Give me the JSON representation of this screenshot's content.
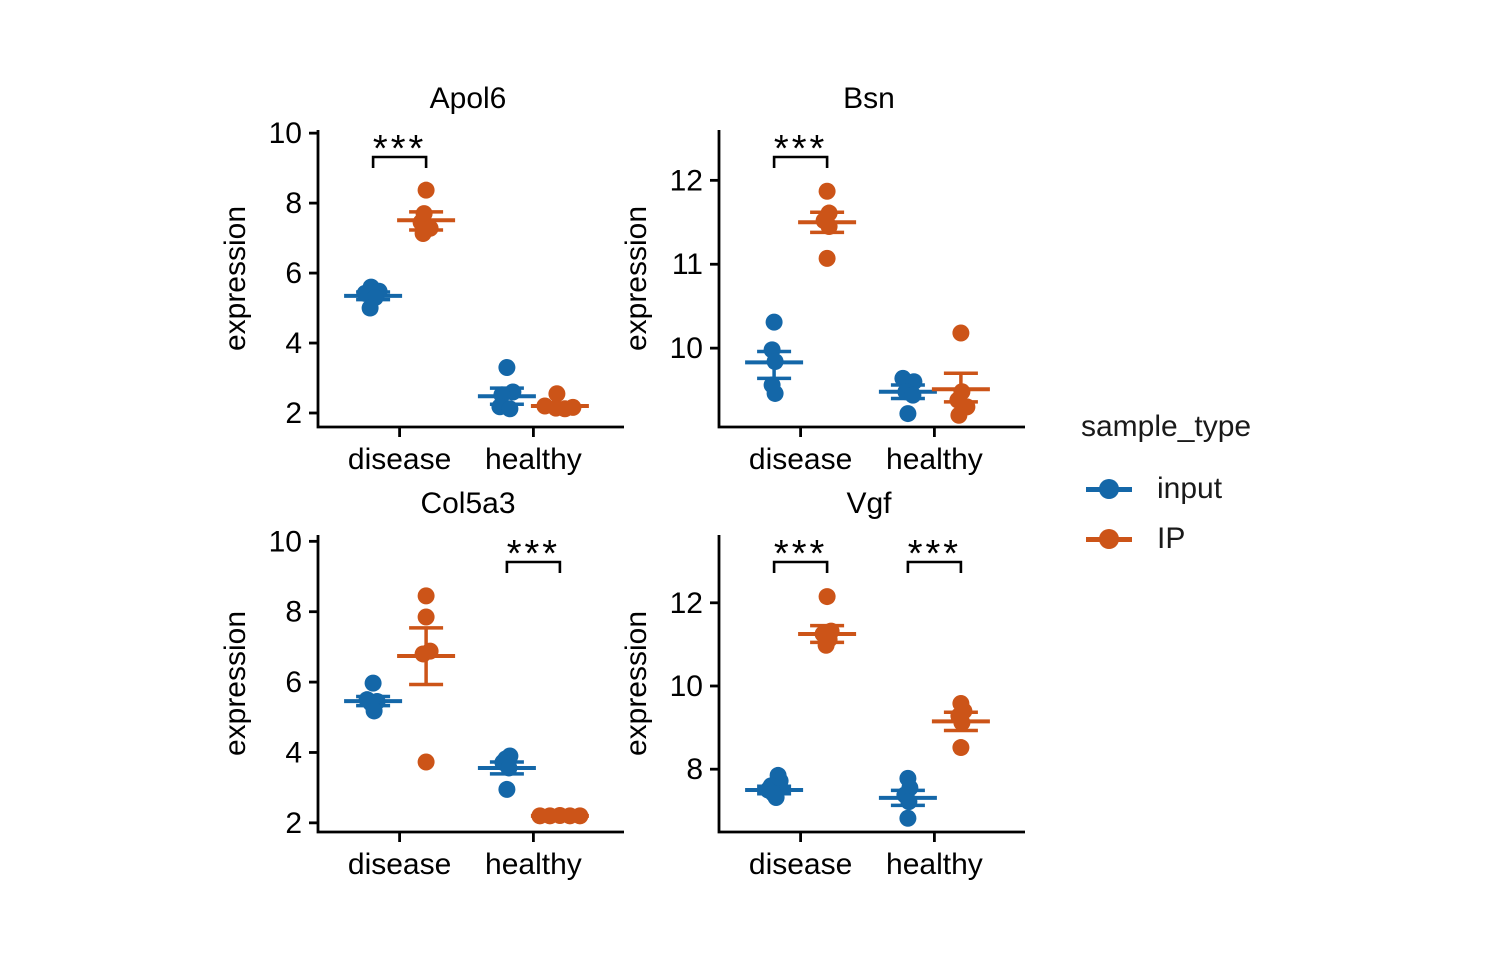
{
  "colors": {
    "input": "#1467A8",
    "IP": "#CC5418",
    "axis": "#000000",
    "text": "#000000",
    "background": "#FFFFFF"
  },
  "legend": {
    "title": "sample_type",
    "entries": [
      {
        "sample_type": "input",
        "label": "input"
      },
      {
        "sample_type": "IP",
        "label": "IP"
      }
    ]
  },
  "chart_data": {
    "type": "scatter",
    "facets": "2x2 grid of genes",
    "ylabel": "expression",
    "categories": [
      "disease",
      "healthy"
    ],
    "series": [
      "input",
      "IP"
    ],
    "legend_position": "right",
    "significance_symbol": "***",
    "panels": [
      {
        "title": "Apol6",
        "ylim": [
          1.6,
          10.09
        ],
        "yticks": [
          2,
          4,
          6,
          8,
          10
        ],
        "significance": [
          {
            "category": "disease",
            "label": "***"
          }
        ],
        "groups": [
          {
            "category": "disease",
            "sample_type": "input",
            "mean": 5.35,
            "sem": [
              5.24,
              5.46
            ],
            "points": [
              {
                "v": 5.6,
                "dx": -2
              },
              {
                "v": 5.48,
                "dx": 6
              },
              {
                "v": 5.42,
                "dx": -8
              },
              {
                "v": 5.3,
                "dx": 2
              },
              {
                "v": 5.0,
                "dx": -3
              }
            ]
          },
          {
            "category": "disease",
            "sample_type": "IP",
            "mean": 7.51,
            "sem": [
              7.23,
              7.75
            ],
            "points": [
              {
                "v": 8.37,
                "dx": 0
              },
              {
                "v": 7.7,
                "dx": -2
              },
              {
                "v": 7.45,
                "dx": -5
              },
              {
                "v": 7.28,
                "dx": 4
              },
              {
                "v": 7.13,
                "dx": -3
              }
            ]
          },
          {
            "category": "healthy",
            "sample_type": "input",
            "mean": 2.48,
            "sem": [
              2.25,
              2.71
            ],
            "points": [
              {
                "v": 3.3,
                "dx": 0
              },
              {
                "v": 2.6,
                "dx": 6
              },
              {
                "v": 2.52,
                "dx": -5
              },
              {
                "v": 2.18,
                "dx": -7
              },
              {
                "v": 2.12,
                "dx": 3
              }
            ]
          },
          {
            "category": "healthy",
            "sample_type": "IP",
            "mean": 2.2,
            "sem": [
              2.13,
              2.27
            ],
            "points": [
              {
                "v": 2.55,
                "dx": -3
              },
              {
                "v": 2.2,
                "dx": -15
              },
              {
                "v": 2.16,
                "dx": 13
              },
              {
                "v": 2.14,
                "dx": -4
              },
              {
                "v": 2.12,
                "dx": 5
              }
            ]
          }
        ]
      },
      {
        "title": "Bsn",
        "ylim": [
          9.06,
          12.6
        ],
        "yticks": [
          10,
          11,
          12
        ],
        "significance": [
          {
            "category": "disease",
            "label": "***"
          }
        ],
        "groups": [
          {
            "category": "disease",
            "sample_type": "input",
            "mean": 9.83,
            "sem": [
              9.64,
              9.96
            ],
            "points": [
              {
                "v": 10.31,
                "dx": 0
              },
              {
                "v": 9.98,
                "dx": -2
              },
              {
                "v": 9.84,
                "dx": 1
              },
              {
                "v": 9.56,
                "dx": -2
              },
              {
                "v": 9.46,
                "dx": 1
              }
            ]
          },
          {
            "category": "disease",
            "sample_type": "IP",
            "mean": 11.5,
            "sem": [
              11.38,
              11.62
            ],
            "points": [
              {
                "v": 11.87,
                "dx": 0
              },
              {
                "v": 11.61,
                "dx": 2
              },
              {
                "v": 11.52,
                "dx": -3
              },
              {
                "v": 11.45,
                "dx": 2
              },
              {
                "v": 11.07,
                "dx": 0
              }
            ]
          },
          {
            "category": "healthy",
            "sample_type": "input",
            "mean": 9.48,
            "sem": [
              9.4,
              9.56
            ],
            "points": [
              {
                "v": 9.64,
                "dx": -5
              },
              {
                "v": 9.6,
                "dx": 6
              },
              {
                "v": 9.48,
                "dx": -2
              },
              {
                "v": 9.44,
                "dx": 5
              },
              {
                "v": 9.22,
                "dx": 0
              }
            ]
          },
          {
            "category": "healthy",
            "sample_type": "IP",
            "mean": 9.51,
            "sem": [
              9.36,
              9.7
            ],
            "points": [
              {
                "v": 10.18,
                "dx": 0
              },
              {
                "v": 9.48,
                "dx": 1
              },
              {
                "v": 9.38,
                "dx": -3
              },
              {
                "v": 9.3,
                "dx": 6
              },
              {
                "v": 9.2,
                "dx": -2
              }
            ]
          }
        ]
      },
      {
        "title": "Col5a3",
        "ylim": [
          1.74,
          10.18
        ],
        "yticks": [
          2,
          4,
          6,
          8,
          10
        ],
        "significance": [
          {
            "category": "healthy",
            "label": "***"
          }
        ],
        "groups": [
          {
            "category": "disease",
            "sample_type": "input",
            "mean": 5.46,
            "sem": [
              5.33,
              5.59
            ],
            "points": [
              {
                "v": 5.97,
                "dx": 0
              },
              {
                "v": 5.5,
                "dx": -6
              },
              {
                "v": 5.45,
                "dx": 4
              },
              {
                "v": 5.4,
                "dx": -2
              },
              {
                "v": 5.18,
                "dx": 1
              }
            ]
          },
          {
            "category": "disease",
            "sample_type": "IP",
            "mean": 6.74,
            "sem": [
              5.93,
              7.54
            ],
            "points": [
              {
                "v": 8.45,
                "dx": 0
              },
              {
                "v": 7.85,
                "dx": 0
              },
              {
                "v": 6.88,
                "dx": 4
              },
              {
                "v": 6.8,
                "dx": -3
              },
              {
                "v": 3.73,
                "dx": 0
              }
            ]
          },
          {
            "category": "healthy",
            "sample_type": "input",
            "mean": 3.56,
            "sem": [
              3.39,
              3.73
            ],
            "points": [
              {
                "v": 3.9,
                "dx": 3
              },
              {
                "v": 3.82,
                "dx": -1
              },
              {
                "v": 3.72,
                "dx": -4
              },
              {
                "v": 3.56,
                "dx": 2
              },
              {
                "v": 2.95,
                "dx": 0
              }
            ]
          },
          {
            "category": "healthy",
            "sample_type": "IP",
            "mean": 2.2,
            "sem": [
              2.18,
              2.22
            ],
            "points": [
              {
                "v": 2.2,
                "dx": -20
              },
              {
                "v": 2.2,
                "dx": -10
              },
              {
                "v": 2.21,
                "dx": 0
              },
              {
                "v": 2.2,
                "dx": 10
              },
              {
                "v": 2.2,
                "dx": 20
              }
            ]
          }
        ]
      },
      {
        "title": "Vgf",
        "ylim": [
          6.49,
          13.63
        ],
        "yticks": [
          8,
          10,
          12
        ],
        "significance": [
          {
            "category": "disease",
            "label": "***"
          },
          {
            "category": "healthy",
            "label": "***"
          }
        ],
        "groups": [
          {
            "category": "disease",
            "sample_type": "input",
            "mean": 7.5,
            "sem": [
              7.41,
              7.59
            ],
            "points": [
              {
                "v": 7.85,
                "dx": 4
              },
              {
                "v": 7.72,
                "dx": 6
              },
              {
                "v": 7.6,
                "dx": -3
              },
              {
                "v": 7.5,
                "dx": -6
              },
              {
                "v": 7.42,
                "dx": -1
              },
              {
                "v": 7.32,
                "dx": 2
              }
            ]
          },
          {
            "category": "disease",
            "sample_type": "IP",
            "mean": 11.25,
            "sem": [
              11.05,
              11.45
            ],
            "points": [
              {
                "v": 12.15,
                "dx": 0
              },
              {
                "v": 11.32,
                "dx": 4
              },
              {
                "v": 11.25,
                "dx": -4
              },
              {
                "v": 11.12,
                "dx": 2
              },
              {
                "v": 10.98,
                "dx": -1
              }
            ]
          },
          {
            "category": "healthy",
            "sample_type": "input",
            "mean": 7.31,
            "sem": [
              7.13,
              7.49
            ],
            "points": [
              {
                "v": 7.78,
                "dx": 0
              },
              {
                "v": 7.55,
                "dx": 2
              },
              {
                "v": 7.38,
                "dx": -3
              },
              {
                "v": 7.22,
                "dx": 1
              },
              {
                "v": 6.82,
                "dx": 0
              }
            ]
          },
          {
            "category": "healthy",
            "sample_type": "IP",
            "mean": 9.15,
            "sem": [
              8.93,
              9.37
            ],
            "points": [
              {
                "v": 9.58,
                "dx": 0
              },
              {
                "v": 9.4,
                "dx": 3
              },
              {
                "v": 9.28,
                "dx": -2
              },
              {
                "v": 9.12,
                "dx": 1
              },
              {
                "v": 8.52,
                "dx": 0
              }
            ]
          }
        ]
      }
    ]
  }
}
